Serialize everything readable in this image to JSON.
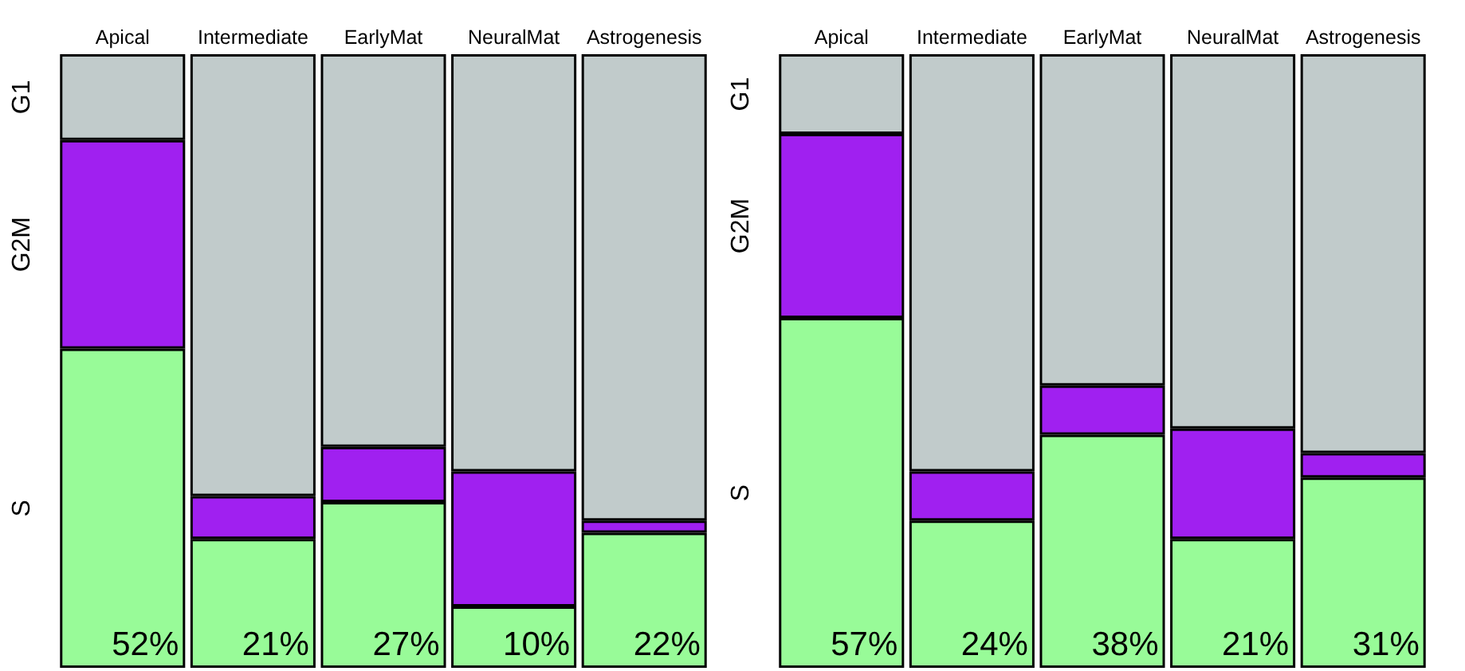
{
  "chart_data": [
    {
      "type": "bar",
      "stacked": true,
      "legend": false,
      "ylim": [
        0,
        100
      ],
      "tick_labels": "x",
      "categories": [
        "Apical",
        "Intermediate",
        "EarlyMat",
        "NeuralMat",
        "Astrogenesis"
      ],
      "series": [
        {
          "name": "S",
          "color": "#98fb98",
          "values": [
            52,
            21,
            27,
            10,
            22
          ],
          "value_labels": [
            "52%",
            "21%",
            "27%",
            "10%",
            "22%"
          ]
        },
        {
          "name": "G2M",
          "color": "#a020f0",
          "values": [
            34,
            7,
            9,
            22,
            2
          ]
        },
        {
          "name": "G1",
          "color": "#c1cbcb",
          "values": [
            14,
            72,
            64,
            68,
            76
          ]
        }
      ]
    },
    {
      "type": "bar",
      "stacked": true,
      "legend": false,
      "ylim": [
        0,
        100
      ],
      "tick_labels": "x",
      "categories": [
        "Apical",
        "Intermediate",
        "EarlyMat",
        "NeuralMat",
        "Astrogenesis"
      ],
      "series": [
        {
          "name": "S",
          "color": "#98fb98",
          "values": [
            57,
            24,
            38,
            21,
            31
          ],
          "value_labels": [
            "57%",
            "24%",
            "38%",
            "21%",
            "31%"
          ]
        },
        {
          "name": "G2M",
          "color": "#a020f0",
          "values": [
            30,
            8,
            8,
            18,
            4
          ]
        },
        {
          "name": "G1",
          "color": "#c1cbcb",
          "values": [
            13,
            68,
            54,
            61,
            65
          ]
        }
      ]
    }
  ]
}
